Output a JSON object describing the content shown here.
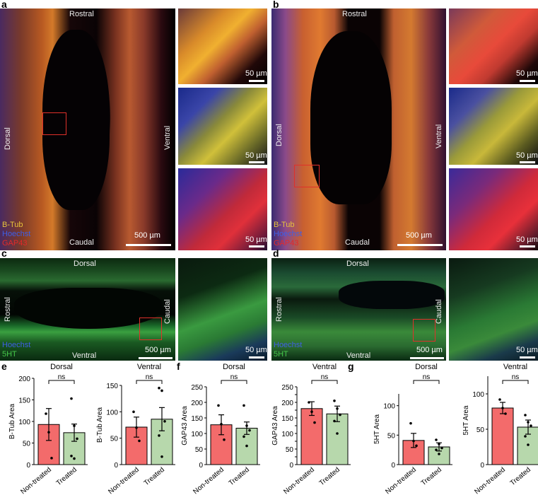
{
  "panels": {
    "a": "a",
    "b": "b",
    "c": "c",
    "d": "d",
    "e": "e",
    "f": "f",
    "g": "g"
  },
  "labels": {
    "rostral": "Rostral",
    "caudal": "Caudal",
    "dorsal": "Dorsal",
    "ventral": "Ventral"
  },
  "scale": {
    "large": "500 µm",
    "small": "50 µm"
  },
  "legend_ab": {
    "btub": "B-Tub",
    "hoechst": "Hoechst",
    "gap43": "GAP43"
  },
  "legend_cd": {
    "hoechst": "Hoechst",
    "ht": "5HT"
  },
  "colors": {
    "red_bar": "#f36b6b",
    "green_bar": "#b7d8ac",
    "roi": "#e0302a",
    "btub": "#e8c23a",
    "hoechst": "#3e5fe6",
    "gap43": "#e22a2a",
    "ht": "#45c64a"
  },
  "chart_data": [
    {
      "type": "bar",
      "panel": "e",
      "title": "Dorsal",
      "ylabel": "B-Tub Area",
      "categories": [
        "Non-treated",
        "Treated"
      ],
      "values": [
        93,
        74
      ],
      "errors": [
        37,
        20
      ],
      "points": [
        [
          118,
          75,
          15
        ],
        [
          153,
          90,
          60,
          20,
          14
        ]
      ],
      "ylim": [
        0,
        200
      ],
      "yticks": [
        0,
        50,
        100,
        150,
        200
      ],
      "significance": "ns"
    },
    {
      "type": "bar",
      "panel": "e",
      "title": "Ventral",
      "ylabel": "B-Tub Area",
      "categories": [
        "Non-treated",
        "Treated"
      ],
      "values": [
        71,
        86
      ],
      "errors": [
        19,
        22
      ],
      "points": [
        [
          100,
          70,
          45
        ],
        [
          145,
          140,
          82,
          55,
          15
        ]
      ],
      "ylim": [
        0,
        150
      ],
      "yticks": [
        0,
        50,
        100,
        150
      ],
      "significance": "ns"
    },
    {
      "type": "bar",
      "panel": "f",
      "title": "Dorsal",
      "ylabel": "GAP43 Area",
      "categories": [
        "Non-treated",
        "Treated"
      ],
      "values": [
        128,
        117
      ],
      "errors": [
        32,
        20
      ],
      "points": [
        [
          190,
          130,
          80
        ],
        [
          190,
          125,
          110,
          90,
          60
        ]
      ],
      "ylim": [
        0,
        250
      ],
      "yticks": [
        0,
        50,
        100,
        150,
        200,
        250
      ],
      "significance": "ns"
    },
    {
      "type": "bar",
      "panel": "f",
      "title": "Ventral",
      "ylabel": "GAP43 Area",
      "categories": [
        "Non-treated",
        "Treated"
      ],
      "values": [
        180,
        163
      ],
      "errors": [
        22,
        25
      ],
      "points": [
        [
          200,
          170,
          135
        ],
        [
          205,
          180,
          160,
          140,
          100
        ]
      ],
      "ylim": [
        0,
        250
      ],
      "yticks": [
        0,
        25,
        50,
        75,
        100,
        125,
        150,
        175,
        200,
        225,
        250
      ],
      "significance": "ns"
    },
    {
      "type": "bar",
      "panel": "g",
      "title": "Dorsal",
      "ylabel": "5HT Area",
      "categories": [
        "Non-treated",
        "Treated"
      ],
      "values": [
        41,
        30
      ],
      "errors": [
        12,
        7
      ],
      "points": [
        [
          70,
          40,
          32
        ],
        [
          42,
          35,
          28,
          25,
          18
        ]
      ],
      "ylim": [
        0,
        120
      ],
      "yticks": [
        0,
        50,
        100
      ],
      "significance": "ns"
    },
    {
      "type": "bar",
      "panel": "g",
      "title": "Ventral",
      "ylabel": "5HT Area",
      "categories": [
        "Non-treated",
        "Treated"
      ],
      "values": [
        80,
        53
      ],
      "errors": [
        8,
        10
      ],
      "points": [
        [
          92,
          80,
          72
        ],
        [
          70,
          60,
          55,
          40,
          28
        ]
      ],
      "ylim": [
        0,
        125
      ],
      "yticks": [
        0,
        50,
        100
      ],
      "significance": "ns"
    }
  ]
}
